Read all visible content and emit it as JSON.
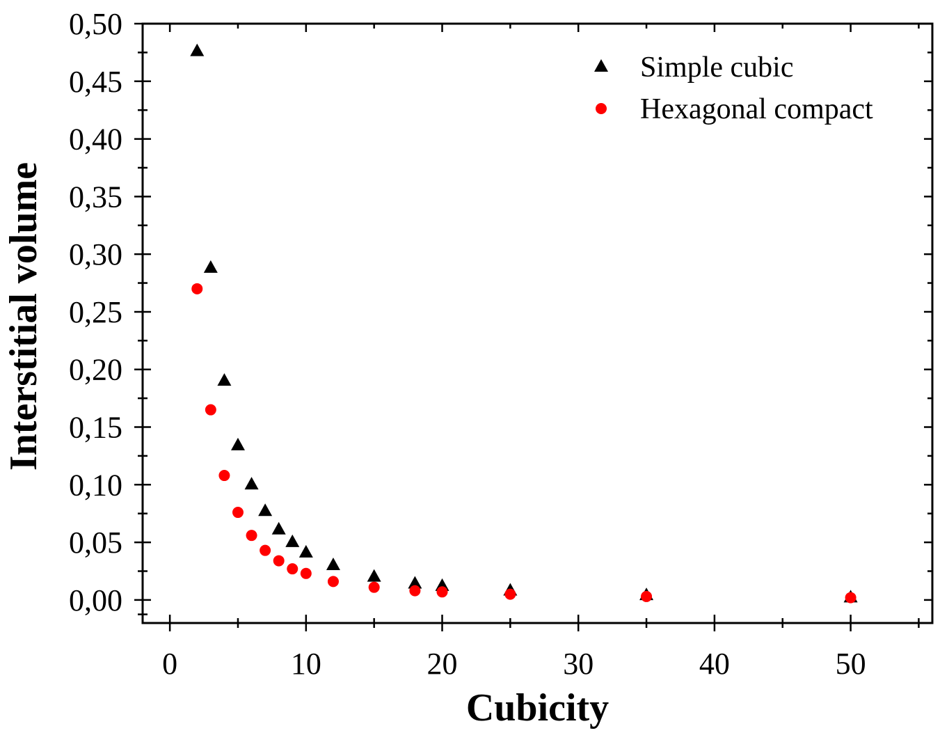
{
  "chart_data": {
    "type": "scatter",
    "title": "",
    "xlabel": "Cubicity",
    "ylabel": "Interstitial volume",
    "xlim": [
      -2,
      56
    ],
    "ylim": [
      -0.02,
      0.5
    ],
    "x_ticks": [
      0,
      10,
      20,
      30,
      40,
      50
    ],
    "x_tick_labels": [
      "0",
      "10",
      "20",
      "30",
      "40",
      "50"
    ],
    "y_ticks": [
      0.0,
      0.05,
      0.1,
      0.15,
      0.2,
      0.25,
      0.3,
      0.35,
      0.4,
      0.45,
      0.5
    ],
    "y_tick_labels": [
      "0,00",
      "0,05",
      "0,10",
      "0,15",
      "0,20",
      "0,25",
      "0,30",
      "0,35",
      "0,40",
      "0,45",
      "0,50"
    ],
    "grid": false,
    "legend_position": "top-right",
    "series": [
      {
        "name": "Simple cubic",
        "marker": "triangle",
        "color": "#000000",
        "x": [
          2,
          3,
          4,
          5,
          6,
          7,
          8,
          9,
          10,
          12,
          15,
          18,
          20,
          25,
          35,
          50
        ],
        "y": [
          0.476,
          0.288,
          0.19,
          0.134,
          0.1,
          0.077,
          0.061,
          0.05,
          0.041,
          0.03,
          0.02,
          0.014,
          0.012,
          0.008,
          0.004,
          0.002
        ]
      },
      {
        "name": "Hexagonal compact",
        "marker": "circle",
        "color": "#ff0000",
        "x": [
          2,
          3,
          4,
          5,
          6,
          7,
          8,
          9,
          10,
          12,
          15,
          18,
          20,
          25,
          35,
          50
        ],
        "y": [
          0.27,
          0.165,
          0.108,
          0.076,
          0.056,
          0.043,
          0.034,
          0.027,
          0.023,
          0.016,
          0.011,
          0.008,
          0.007,
          0.005,
          0.003,
          0.002
        ]
      }
    ]
  }
}
